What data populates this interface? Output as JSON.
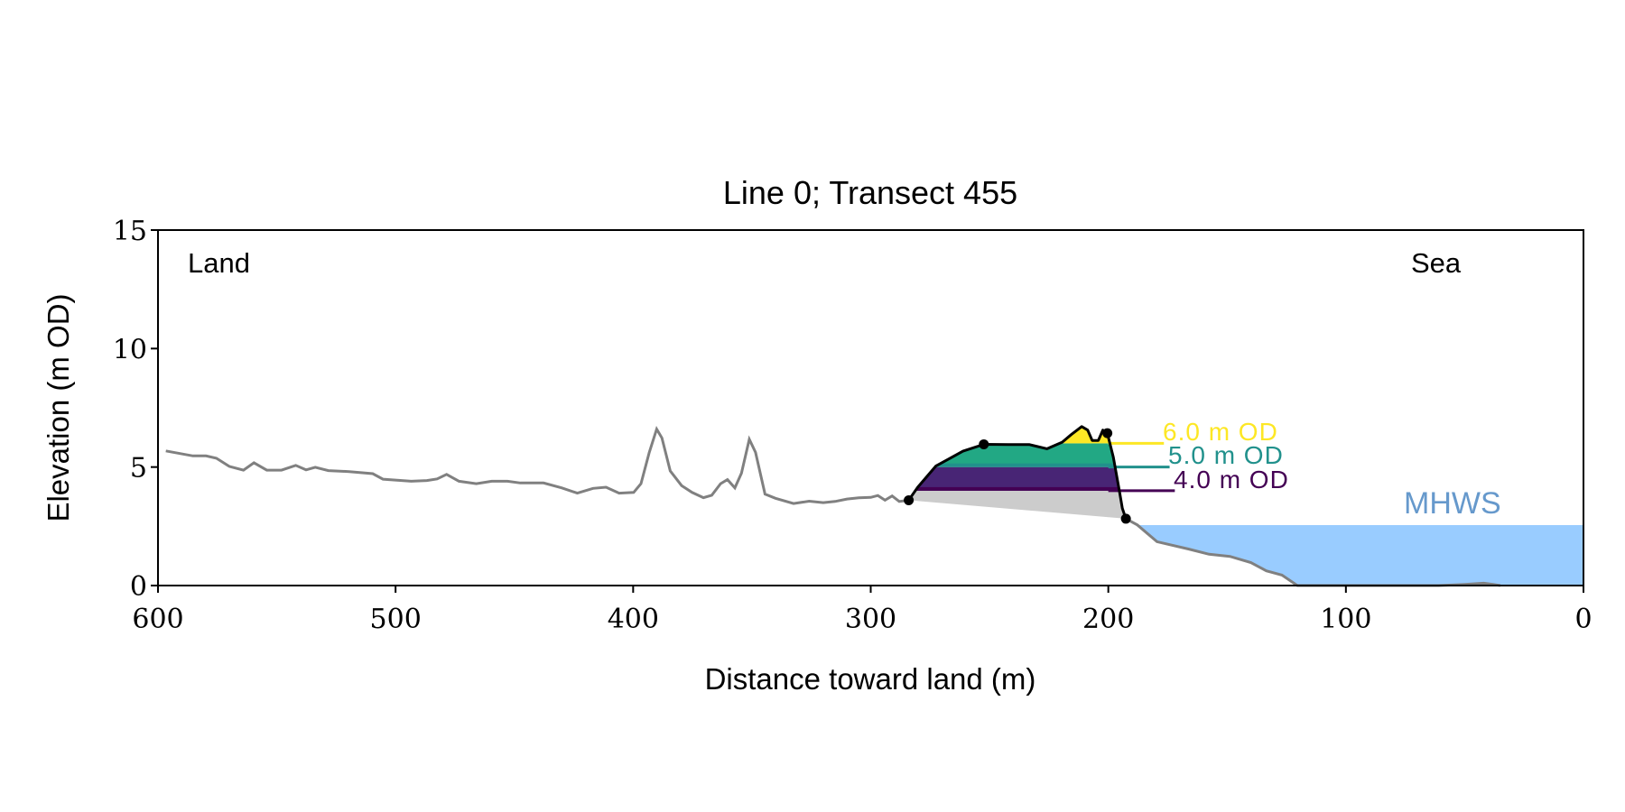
{
  "chart_data": {
    "type": "line",
    "title": "Line 0; Transect 455",
    "xlabel": "Distance toward land (m)",
    "ylabel": "Elevation (m OD)",
    "xlim": [
      600,
      0
    ],
    "ylim": [
      0,
      15
    ],
    "xticks": [
      600,
      500,
      400,
      300,
      200,
      100,
      0
    ],
    "yticks": [
      0,
      5,
      10,
      15
    ],
    "grid": false,
    "annotations": {
      "land": "Land",
      "sea": "Sea",
      "mhws": "MHWS"
    },
    "mhws_level": 2.55,
    "levels": [
      {
        "value": 4.0,
        "label": "4.0 m OD",
        "color": "#440154",
        "fill": "#482575"
      },
      {
        "value": 5.0,
        "label": "5.0 m OD",
        "color": "#21918c",
        "fill": "#22a884"
      },
      {
        "value": 6.0,
        "label": "6.0 m OD",
        "color": "#fde725",
        "fill": "#fde725"
      }
    ],
    "colors": {
      "profile": "#808080",
      "dune": "#000000",
      "base_fill": "#cccccc",
      "water": "#99ccff",
      "mhws_label": "#6699cc"
    },
    "profile_landward": [
      [
        596.7,
        5.68
      ],
      [
        585.3,
        5.47
      ],
      [
        579.8,
        5.47
      ],
      [
        575.4,
        5.37
      ],
      [
        570,
        5.03
      ],
      [
        564,
        4.87
      ],
      [
        559.6,
        5.18
      ],
      [
        554.2,
        4.87
      ],
      [
        548,
        4.87
      ],
      [
        542,
        5.07
      ],
      [
        537.7,
        4.88
      ],
      [
        533.8,
        4.99
      ],
      [
        528.3,
        4.85
      ],
      [
        519.5,
        4.81
      ],
      [
        509.6,
        4.72
      ],
      [
        505.3,
        4.49
      ],
      [
        493.4,
        4.4
      ],
      [
        486.8,
        4.43
      ],
      [
        482.5,
        4.5
      ],
      [
        478.5,
        4.69
      ],
      [
        473.3,
        4.4
      ],
      [
        466,
        4.3
      ],
      [
        459.5,
        4.4
      ],
      [
        452.9,
        4.4
      ],
      [
        447.5,
        4.33
      ],
      [
        437.7,
        4.33
      ],
      [
        430,
        4.12
      ],
      [
        423.5,
        3.9
      ],
      [
        416.9,
        4.1
      ],
      [
        411.4,
        4.15
      ],
      [
        405.9,
        3.9
      ],
      [
        399.8,
        3.93
      ],
      [
        396.7,
        4.3
      ],
      [
        393.2,
        5.62
      ],
      [
        390.1,
        6.6
      ],
      [
        387.9,
        6.23
      ],
      [
        384.4,
        4.84
      ],
      [
        379.6,
        4.22
      ],
      [
        375.2,
        3.93
      ],
      [
        370.4,
        3.71
      ],
      [
        366.9,
        3.81
      ],
      [
        363.2,
        4.3
      ],
      [
        360.3,
        4.47
      ],
      [
        357.2,
        4.12
      ],
      [
        354.4,
        4.74
      ],
      [
        351.1,
        6.17
      ],
      [
        348.5,
        5.62
      ],
      [
        344.5,
        3.86
      ],
      [
        340.1,
        3.68
      ],
      [
        332.5,
        3.46
      ],
      [
        325.9,
        3.56
      ],
      [
        320,
        3.5
      ],
      [
        315,
        3.55
      ],
      [
        310,
        3.65
      ],
      [
        305,
        3.7
      ],
      [
        300,
        3.72
      ],
      [
        297,
        3.8
      ],
      [
        294,
        3.6
      ],
      [
        291,
        3.78
      ],
      [
        288,
        3.55
      ],
      [
        284,
        3.6
      ]
    ],
    "dune": [
      [
        284,
        3.6
      ],
      [
        280.2,
        4.15
      ],
      [
        272.6,
        5.04
      ],
      [
        261.2,
        5.67
      ],
      [
        252.4,
        5.96
      ],
      [
        242.2,
        5.95
      ],
      [
        233.3,
        5.95
      ],
      [
        225.8,
        5.77
      ],
      [
        219.4,
        6.05
      ],
      [
        215.6,
        6.37
      ],
      [
        211.2,
        6.71
      ],
      [
        208.7,
        6.56
      ],
      [
        206.8,
        6.12
      ],
      [
        204.2,
        6.12
      ],
      [
        202.3,
        6.56
      ],
      [
        200.4,
        6.43
      ],
      [
        197.9,
        5.42
      ],
      [
        195.4,
        4.02
      ],
      [
        194.1,
        3.26
      ],
      [
        192.6,
        2.82
      ]
    ],
    "dune_points": [
      [
        284,
        3.6
      ],
      [
        252.4,
        5.96
      ],
      [
        200.4,
        6.43
      ],
      [
        192.6,
        2.82
      ]
    ],
    "profile_seaward": [
      [
        192.6,
        2.82
      ],
      [
        187.8,
        2.56
      ],
      [
        179.5,
        1.85
      ],
      [
        166.3,
        1.54
      ],
      [
        157.6,
        1.32
      ],
      [
        148.8,
        1.23
      ],
      [
        140,
        0.97
      ],
      [
        133.5,
        0.62
      ],
      [
        126.9,
        0.44
      ],
      [
        120.4,
        0.0
      ],
      [
        61,
        0.0
      ],
      [
        50,
        0.05
      ],
      [
        42,
        0.1
      ],
      [
        38,
        0.05
      ],
      [
        35,
        0.0
      ]
    ]
  }
}
